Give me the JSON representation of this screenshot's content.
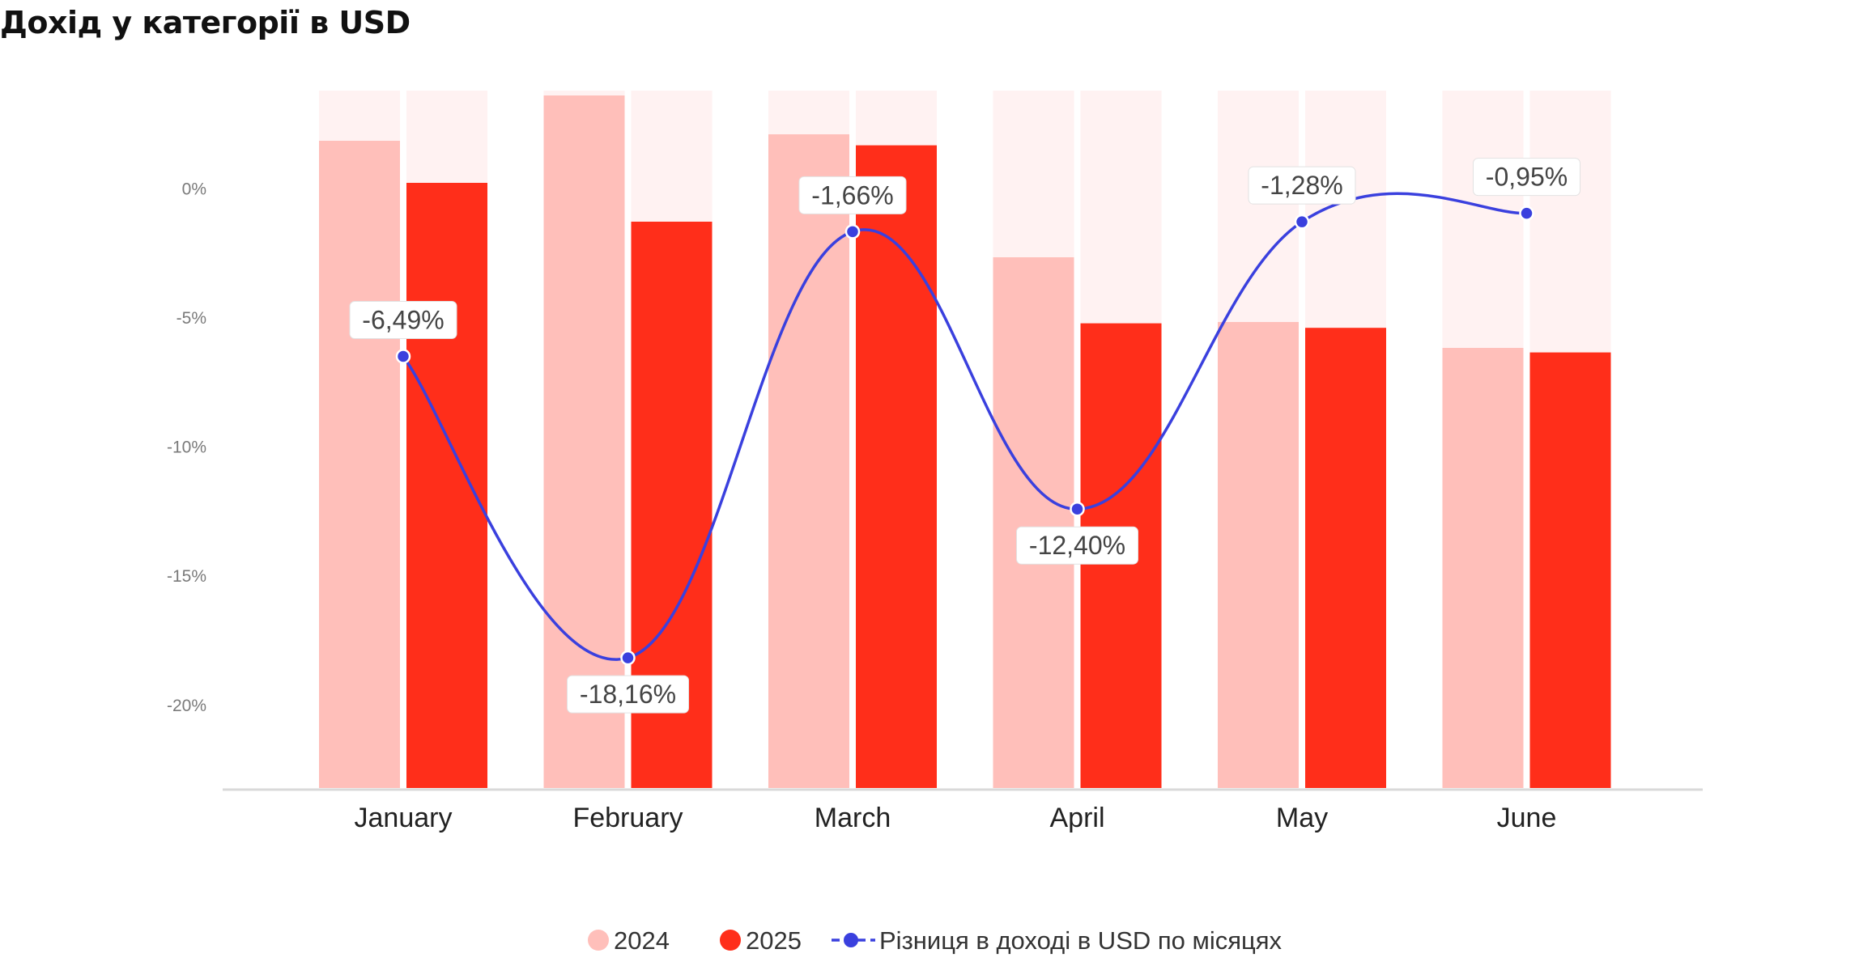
{
  "title": "Дохід у категорії в USD",
  "colors": {
    "bar_2024": "#ffbfba",
    "bar_2025": "#ff2e1a",
    "track": "#fff2f2",
    "line": "#3a40de",
    "axis": "#d9d9d9"
  },
  "chart_data": {
    "type": "bar",
    "categories": [
      "January",
      "February",
      "March",
      "April",
      "May",
      "June"
    ],
    "series": [
      {
        "name": "2024",
        "type": "bar",
        "values": [
          100,
          107,
          101,
          82,
          72,
          68
        ]
      },
      {
        "name": "2025",
        "type": "bar",
        "values": [
          93.5,
          87.5,
          99.3,
          71.8,
          71.1,
          67.3
        ]
      },
      {
        "name": "Різниця в доході в USD по місяцях",
        "type": "line",
        "axis": "right",
        "values": [
          -6.49,
          -18.16,
          -1.66,
          -12.4,
          -1.28,
          -0.95
        ],
        "labels": [
          "-6,49%",
          "-18,16%",
          "-1,66%",
          "-12,40%",
          "-1,28%",
          "-0,95%"
        ]
      }
    ],
    "pct_axis": {
      "ticks": [
        0,
        -5,
        -10,
        -15,
        -20
      ],
      "tick_labels": [
        "0%",
        "-5%",
        "-10%",
        "-15%",
        "-20%"
      ],
      "range": [
        -23.2,
        3.8
      ]
    },
    "legend": {
      "position": "bottom",
      "entries": [
        "2024",
        "2025",
        "Різниця в доході в USD по місяцях"
      ]
    },
    "grid": false
  }
}
